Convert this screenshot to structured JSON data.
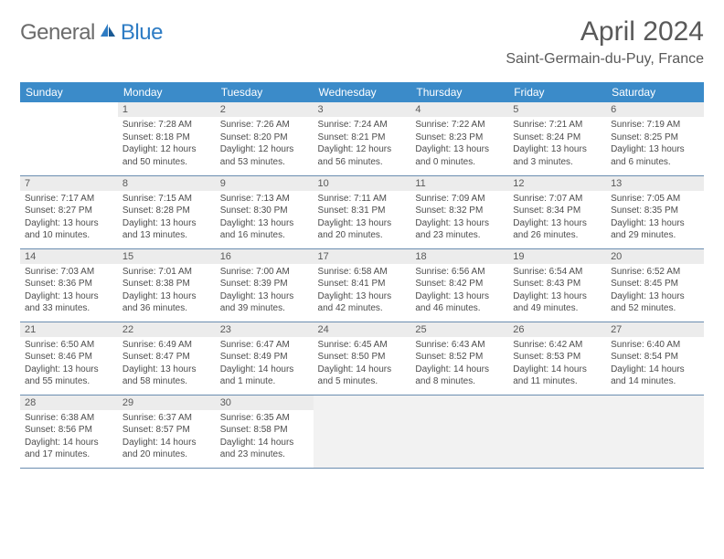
{
  "brand": {
    "name_gray": "General",
    "name_blue": "Blue"
  },
  "title": "April 2024",
  "location": "Saint-Germain-du-Puy, France",
  "header_color": "#3b8bc9",
  "day_num_bg": "#ececec",
  "border_color": "#6a8db0",
  "weekdays": [
    "Sunday",
    "Monday",
    "Tuesday",
    "Wednesday",
    "Thursday",
    "Friday",
    "Saturday"
  ],
  "weeks": [
    [
      {
        "n": "",
        "sr": "",
        "ss": "",
        "dl": ""
      },
      {
        "n": "1",
        "sr": "Sunrise: 7:28 AM",
        "ss": "Sunset: 8:18 PM",
        "dl": "Daylight: 12 hours and 50 minutes."
      },
      {
        "n": "2",
        "sr": "Sunrise: 7:26 AM",
        "ss": "Sunset: 8:20 PM",
        "dl": "Daylight: 12 hours and 53 minutes."
      },
      {
        "n": "3",
        "sr": "Sunrise: 7:24 AM",
        "ss": "Sunset: 8:21 PM",
        "dl": "Daylight: 12 hours and 56 minutes."
      },
      {
        "n": "4",
        "sr": "Sunrise: 7:22 AM",
        "ss": "Sunset: 8:23 PM",
        "dl": "Daylight: 13 hours and 0 minutes."
      },
      {
        "n": "5",
        "sr": "Sunrise: 7:21 AM",
        "ss": "Sunset: 8:24 PM",
        "dl": "Daylight: 13 hours and 3 minutes."
      },
      {
        "n": "6",
        "sr": "Sunrise: 7:19 AM",
        "ss": "Sunset: 8:25 PM",
        "dl": "Daylight: 13 hours and 6 minutes."
      }
    ],
    [
      {
        "n": "7",
        "sr": "Sunrise: 7:17 AM",
        "ss": "Sunset: 8:27 PM",
        "dl": "Daylight: 13 hours and 10 minutes."
      },
      {
        "n": "8",
        "sr": "Sunrise: 7:15 AM",
        "ss": "Sunset: 8:28 PM",
        "dl": "Daylight: 13 hours and 13 minutes."
      },
      {
        "n": "9",
        "sr": "Sunrise: 7:13 AM",
        "ss": "Sunset: 8:30 PM",
        "dl": "Daylight: 13 hours and 16 minutes."
      },
      {
        "n": "10",
        "sr": "Sunrise: 7:11 AM",
        "ss": "Sunset: 8:31 PM",
        "dl": "Daylight: 13 hours and 20 minutes."
      },
      {
        "n": "11",
        "sr": "Sunrise: 7:09 AM",
        "ss": "Sunset: 8:32 PM",
        "dl": "Daylight: 13 hours and 23 minutes."
      },
      {
        "n": "12",
        "sr": "Sunrise: 7:07 AM",
        "ss": "Sunset: 8:34 PM",
        "dl": "Daylight: 13 hours and 26 minutes."
      },
      {
        "n": "13",
        "sr": "Sunrise: 7:05 AM",
        "ss": "Sunset: 8:35 PM",
        "dl": "Daylight: 13 hours and 29 minutes."
      }
    ],
    [
      {
        "n": "14",
        "sr": "Sunrise: 7:03 AM",
        "ss": "Sunset: 8:36 PM",
        "dl": "Daylight: 13 hours and 33 minutes."
      },
      {
        "n": "15",
        "sr": "Sunrise: 7:01 AM",
        "ss": "Sunset: 8:38 PM",
        "dl": "Daylight: 13 hours and 36 minutes."
      },
      {
        "n": "16",
        "sr": "Sunrise: 7:00 AM",
        "ss": "Sunset: 8:39 PM",
        "dl": "Daylight: 13 hours and 39 minutes."
      },
      {
        "n": "17",
        "sr": "Sunrise: 6:58 AM",
        "ss": "Sunset: 8:41 PM",
        "dl": "Daylight: 13 hours and 42 minutes."
      },
      {
        "n": "18",
        "sr": "Sunrise: 6:56 AM",
        "ss": "Sunset: 8:42 PM",
        "dl": "Daylight: 13 hours and 46 minutes."
      },
      {
        "n": "19",
        "sr": "Sunrise: 6:54 AM",
        "ss": "Sunset: 8:43 PM",
        "dl": "Daylight: 13 hours and 49 minutes."
      },
      {
        "n": "20",
        "sr": "Sunrise: 6:52 AM",
        "ss": "Sunset: 8:45 PM",
        "dl": "Daylight: 13 hours and 52 minutes."
      }
    ],
    [
      {
        "n": "21",
        "sr": "Sunrise: 6:50 AM",
        "ss": "Sunset: 8:46 PM",
        "dl": "Daylight: 13 hours and 55 minutes."
      },
      {
        "n": "22",
        "sr": "Sunrise: 6:49 AM",
        "ss": "Sunset: 8:47 PM",
        "dl": "Daylight: 13 hours and 58 minutes."
      },
      {
        "n": "23",
        "sr": "Sunrise: 6:47 AM",
        "ss": "Sunset: 8:49 PM",
        "dl": "Daylight: 14 hours and 1 minute."
      },
      {
        "n": "24",
        "sr": "Sunrise: 6:45 AM",
        "ss": "Sunset: 8:50 PM",
        "dl": "Daylight: 14 hours and 5 minutes."
      },
      {
        "n": "25",
        "sr": "Sunrise: 6:43 AM",
        "ss": "Sunset: 8:52 PM",
        "dl": "Daylight: 14 hours and 8 minutes."
      },
      {
        "n": "26",
        "sr": "Sunrise: 6:42 AM",
        "ss": "Sunset: 8:53 PM",
        "dl": "Daylight: 14 hours and 11 minutes."
      },
      {
        "n": "27",
        "sr": "Sunrise: 6:40 AM",
        "ss": "Sunset: 8:54 PM",
        "dl": "Daylight: 14 hours and 14 minutes."
      }
    ],
    [
      {
        "n": "28",
        "sr": "Sunrise: 6:38 AM",
        "ss": "Sunset: 8:56 PM",
        "dl": "Daylight: 14 hours and 17 minutes."
      },
      {
        "n": "29",
        "sr": "Sunrise: 6:37 AM",
        "ss": "Sunset: 8:57 PM",
        "dl": "Daylight: 14 hours and 20 minutes."
      },
      {
        "n": "30",
        "sr": "Sunrise: 6:35 AM",
        "ss": "Sunset: 8:58 PM",
        "dl": "Daylight: 14 hours and 23 minutes."
      },
      {
        "n": "",
        "sr": "",
        "ss": "",
        "dl": "",
        "trail": true
      },
      {
        "n": "",
        "sr": "",
        "ss": "",
        "dl": "",
        "trail": true
      },
      {
        "n": "",
        "sr": "",
        "ss": "",
        "dl": "",
        "trail": true
      },
      {
        "n": "",
        "sr": "",
        "ss": "",
        "dl": "",
        "trail": true
      }
    ]
  ]
}
